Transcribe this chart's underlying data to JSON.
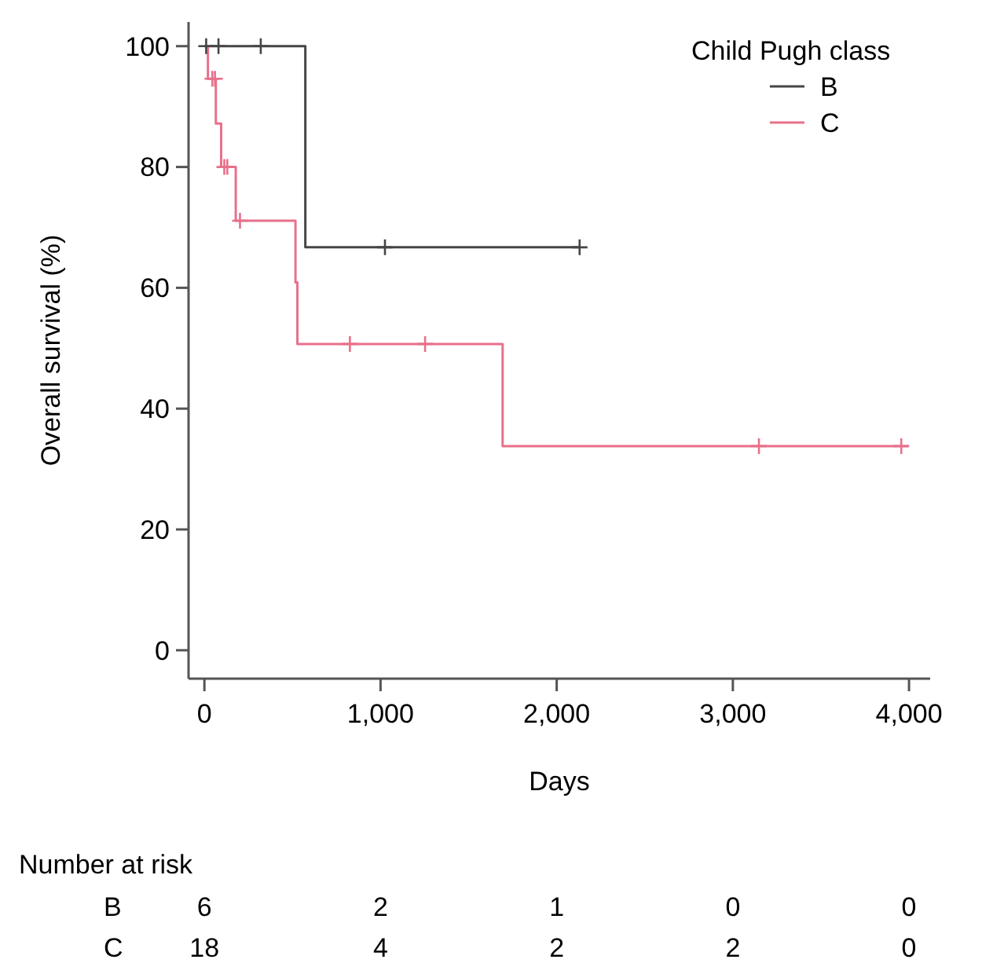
{
  "chart_data": {
    "type": "step",
    "xlabel": "Days",
    "ylabel": "Overall survival (%)",
    "legend_title": "Child Pugh class",
    "legend": "top right",
    "grid": false,
    "xlim": [
      -90,
      4120
    ],
    "xticks": [
      {
        "value": 0,
        "label": "0"
      },
      {
        "value": 1000,
        "label": "1,000"
      },
      {
        "value": 2000,
        "label": "2,000"
      },
      {
        "value": 3000,
        "label": "3,000"
      },
      {
        "value": 4000,
        "label": "4,000"
      }
    ],
    "ylim": [
      -4.7,
      104
    ],
    "yticks": [
      0,
      20,
      40,
      60,
      80,
      100
    ],
    "series": [
      {
        "name": "B",
        "color": "#454545",
        "x": [
          0,
          573,
          2130
        ],
        "values": [
          100,
          66.7,
          66.7
        ]
      },
      {
        "name": "C",
        "color": "#e8708a",
        "x": [
          0,
          20,
          65,
          95,
          178,
          517,
          528,
          1693,
          3997
        ],
        "values": [
          100,
          94.6,
          87.2,
          80,
          71.1,
          60.9,
          50.7,
          33.8,
          33.8
        ]
      },
      {
        "type": "scatter",
        "marker": "cross",
        "color": "#454545",
        "x": [
          10,
          80,
          320,
          1025,
          2130
        ],
        "values": [
          100,
          100,
          100,
          66.7,
          66.7
        ]
      },
      {
        "type": "scatter",
        "marker": "cross",
        "color": "#e8708a",
        "x": [
          45,
          60,
          113,
          130,
          202,
          826,
          1253,
          3148,
          3956
        ],
        "values": [
          94.6,
          94.6,
          80,
          80,
          71.1,
          50.7,
          50.7,
          33.8,
          33.8
        ]
      }
    ],
    "annotations": [
      "Number at risk",
      "B",
      "6",
      "2",
      "1",
      "0",
      "0",
      "C",
      "18",
      "4",
      "2",
      "2",
      "0"
    ]
  }
}
